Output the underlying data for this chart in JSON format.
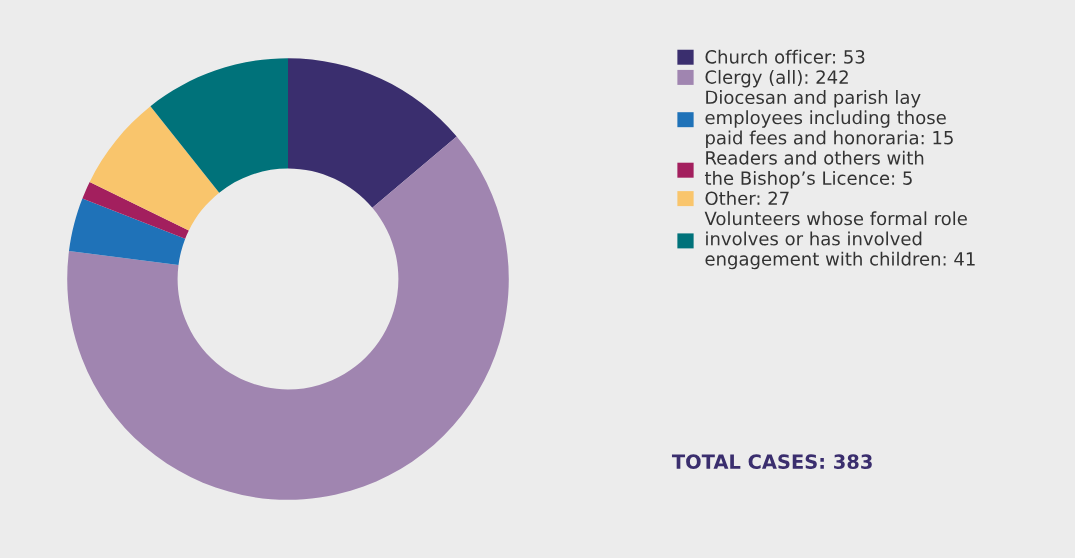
{
  "chart_data": {
    "type": "donut",
    "categories": [
      "Church officer: 53",
      "Clergy (all): 242",
      "Diocesan and parish lay\nemployees including those\npaid fees and honoraria: 15",
      "Readers and others with\nthe Bishop’s Licence: 5",
      "Other: 27",
      "Volunteers whose formal role\ninvolves or has involved\nengagement with children: 41"
    ],
    "values": [
      53,
      242,
      15,
      5,
      27,
      41
    ],
    "colors": [
      "#3a2e6e",
      "#a085b0",
      "#1f72b8",
      "#a31f5e",
      "#f9c56c",
      "#00727a"
    ],
    "legend": "right",
    "annotations": [
      "TOTAL CASES: 383"
    ]
  }
}
